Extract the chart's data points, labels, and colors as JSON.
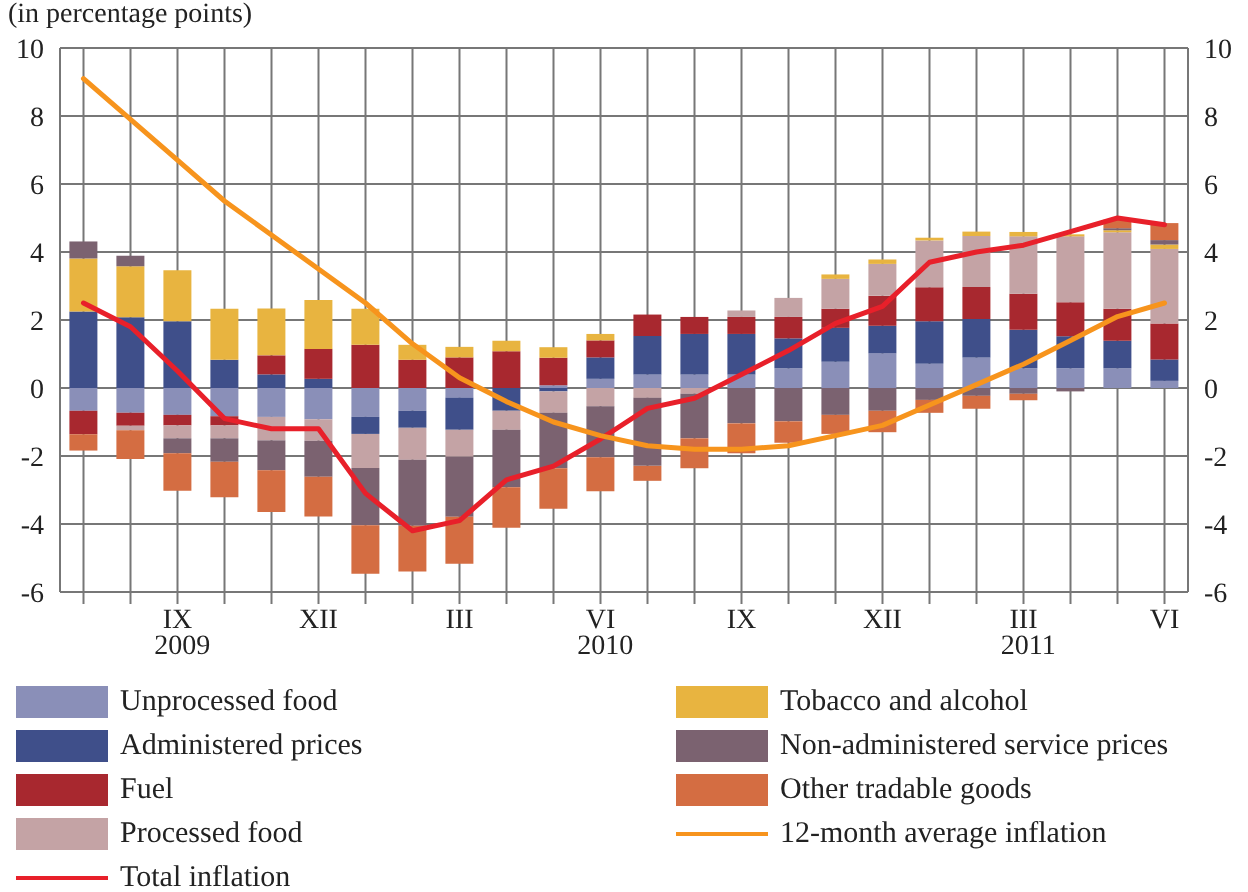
{
  "chart_data": {
    "type": "bar",
    "subtitle": "(in percentage points)",
    "stacked": true,
    "categories": [
      null,
      null,
      "IX",
      null,
      null,
      "XII",
      null,
      null,
      "III",
      null,
      null,
      "VI",
      null,
      null,
      "IX",
      null,
      null,
      "XII",
      null,
      null,
      "III",
      null,
      null,
      "VI"
    ],
    "annotations": [
      "2009",
      "2010",
      "2011"
    ],
    "ylim": [
      -6,
      10
    ],
    "yticks": [
      -6,
      -4,
      -2,
      0,
      2,
      4,
      6,
      8,
      10
    ],
    "y2lim": [
      -6,
      10
    ],
    "y2ticks": [
      -6,
      -4,
      -2,
      0,
      2,
      4,
      6,
      8,
      10
    ],
    "grid": true,
    "legend": "bottom",
    "series": [
      {
        "name": "Unprocessed food",
        "color": "#8a8fb8",
        "values": [
          -0.67,
          -0.73,
          -0.79,
          -0.83,
          -0.85,
          -0.92,
          -0.85,
          -0.67,
          -0.29,
          null,
          0.08,
          0.27,
          0.4,
          0.4,
          0.4,
          0.58,
          0.77,
          1.02,
          0.71,
          0.9,
          0.58,
          0.58,
          0.58,
          0.21
        ]
      },
      {
        "name": "Administered prices",
        "color": "#3f4f8a",
        "values": [
          2.25,
          2.08,
          1.96,
          0.83,
          0.4,
          0.27,
          -0.5,
          -0.5,
          -0.94,
          -0.67,
          -0.1,
          0.63,
          1.13,
          1.19,
          1.19,
          0.88,
          1.0,
          0.81,
          1.25,
          1.13,
          1.13,
          0.94,
          0.81,
          0.63
        ]
      },
      {
        "name": "Fuel",
        "color": "#a8282f",
        "values": [
          -0.69,
          -0.38,
          -0.31,
          -0.27,
          0.56,
          0.88,
          1.27,
          0.83,
          0.9,
          1.08,
          0.81,
          0.5,
          0.63,
          0.5,
          0.5,
          0.63,
          0.56,
          0.88,
          1.0,
          0.94,
          1.06,
          1.0,
          0.94,
          1.06
        ]
      },
      {
        "name": "Processed food",
        "color": "#c4a3a5",
        "values": [
          null,
          -0.13,
          -0.38,
          -0.38,
          -0.69,
          -0.63,
          -1.0,
          -0.94,
          -0.79,
          -0.56,
          -0.63,
          -0.54,
          -0.29,
          -0.17,
          0.19,
          0.56,
          0.88,
          0.94,
          1.38,
          1.5,
          1.69,
          1.94,
          2.25,
          2.19
        ]
      },
      {
        "name": "Tobacco and alcohol",
        "color": "#e8b440",
        "values": [
          1.56,
          1.5,
          1.5,
          1.5,
          1.38,
          1.44,
          1.06,
          0.44,
          0.31,
          0.31,
          0.31,
          0.19,
          null,
          null,
          null,
          null,
          0.13,
          0.13,
          0.08,
          0.13,
          0.13,
          0.06,
          0.06,
          0.13
        ]
      },
      {
        "name": "Non-administered service prices",
        "color": "#7b6270",
        "values": [
          0.5,
          0.31,
          -0.44,
          -0.69,
          -0.88,
          -1.06,
          -1.69,
          -1.94,
          -1.77,
          -1.69,
          -1.63,
          -1.5,
          -2.0,
          -1.31,
          -1.04,
          -0.98,
          -0.79,
          -0.67,
          -0.35,
          -0.23,
          -0.17,
          -0.1,
          0.06,
          0.13
        ]
      },
      {
        "name": "Other tradable goods",
        "color": "#d46d42",
        "values": [
          -0.48,
          -0.85,
          -1.1,
          -1.04,
          -1.23,
          -1.17,
          -1.42,
          -1.35,
          -1.38,
          -1.19,
          -1.19,
          -1.0,
          -0.44,
          -0.88,
          -0.88,
          -0.63,
          -0.56,
          -0.63,
          -0.38,
          -0.38,
          -0.19,
          null,
          0.25,
          0.5
        ]
      },
      {
        "name": "Total inflation",
        "type": "line",
        "color": "#e8202a",
        "values": [
          2.5,
          1.8,
          0.5,
          -0.9,
          -1.2,
          -1.2,
          -3.1,
          -4.2,
          -3.9,
          -2.7,
          -2.3,
          -1.5,
          -0.6,
          -0.3,
          0.4,
          1.1,
          1.9,
          2.4,
          3.7,
          4.0,
          4.2,
          4.6,
          5.0,
          4.8
        ]
      },
      {
        "name": "12-month average inflation",
        "type": "line",
        "color": "#f7941d",
        "values": [
          9.1,
          7.9,
          6.7,
          5.5,
          4.5,
          3.5,
          2.5,
          1.3,
          0.3,
          -0.4,
          -1.0,
          -1.4,
          -1.7,
          -1.8,
          -1.8,
          -1.7,
          -1.4,
          -1.1,
          -0.5,
          0.1,
          0.7,
          1.4,
          2.1,
          2.5
        ]
      }
    ]
  }
}
